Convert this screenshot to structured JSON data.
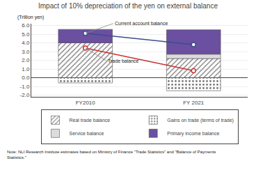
{
  "chart_data": {
    "type": "bar",
    "stacked": true,
    "title": "Impact of 10% depreciation of the yen on external balance",
    "ylabel": "(Trillion yen)",
    "note": "Note: NLI Research Institute estimates based on Ministry of Finance \"Trade Statistics\" and \"Balance of Payments\nStatistics.\"",
    "categories": [
      "FY2010",
      "FY 2021"
    ],
    "series": [
      {
        "name": "Real trade balance",
        "color": "#90EE90",
        "values": [
          4.0,
          2.2
        ]
      },
      {
        "name": "Gains on trade (terms of trade)",
        "color": "#FFB6C1",
        "values": [
          -0.6,
          -1.5
        ]
      },
      {
        "name": "Service balance",
        "color": "#DCDCDC",
        "values": [
          0.0,
          0.5
        ]
      },
      {
        "name": "Primary income balance",
        "color": "#6B4FA0",
        "values": [
          1.55,
          2.8
        ]
      },
      {
        "name": "Current account balance",
        "type": "line",
        "marker": "circle",
        "color": "#3B4E8C",
        "values": [
          5.1,
          3.8
        ]
      },
      {
        "name": "Trade balance",
        "type": "line",
        "marker": "circle",
        "color": "#CC3333",
        "values": [
          3.4,
          0.8
        ]
      }
    ],
    "ylim": [
      -2.2,
      6.2
    ],
    "yticks": [
      {
        "value": -2.0,
        "label": "-2.0"
      },
      {
        "value": -1.0,
        "label": "-1.0"
      },
      {
        "value": 0.0,
        "label": "0.0"
      },
      {
        "value": 1.0,
        "label": "1.0"
      },
      {
        "value": 2.0,
        "label": "2.0"
      },
      {
        "value": 3.0,
        "label": "3.0"
      },
      {
        "value": 4.0,
        "label": "4.0"
      },
      {
        "value": 5.0,
        "label": "5.0"
      },
      {
        "value": 6.0,
        "label": "6.0"
      }
    ],
    "grid": true,
    "legend": "bottom"
  }
}
